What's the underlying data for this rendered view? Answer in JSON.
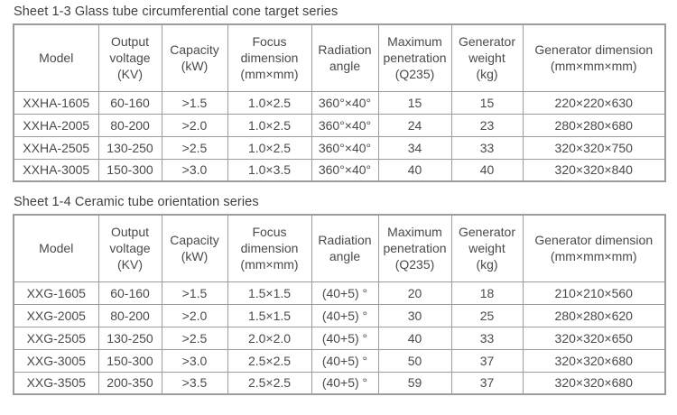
{
  "colors": {
    "border": "#9c9c9c",
    "text": "#4a4a4a",
    "title": "#404040"
  },
  "header_keys": [
    "model",
    "output-voltage",
    "capacity",
    "focus-dimension",
    "radiation-angle",
    "maximum-penetration",
    "generator-weight",
    "generator-dimension"
  ],
  "tables": [
    {
      "title": "Sheet 1-3 Glass tube circumferential cone target series",
      "headers": [
        "Model",
        "Output\nvoltage\n(KV)",
        "Capacity\n(kW)",
        "Focus\ndimension\n(mm×mm)",
        "Radiation\nangle",
        "Maximum\npenetration\n(Q235)",
        "Generator\nweight\n(kg)",
        "Generator dimension\n(mm×mm×mm)"
      ],
      "rows": [
        [
          "XXHA-1605",
          "60-160",
          ">1.5",
          "1.0×2.5",
          "360°×40°",
          "15",
          "15",
          "220×220×630"
        ],
        [
          "XXHA-2005",
          "80-200",
          ">2.0",
          "1.0×2.5",
          "360°×40°",
          "24",
          "23",
          "280×280×680"
        ],
        [
          "XXHA-2505",
          "130-250",
          ">2.5",
          "1.0×2.5",
          "360°×40°",
          "34",
          "33",
          "320×320×750"
        ],
        [
          "XXHA-3005",
          "150-300",
          ">3.0",
          "1.0×3.5",
          "360°×40°",
          "40",
          "40",
          "320×320×840"
        ]
      ]
    },
    {
      "title": "Sheet 1-4 Ceramic tube orientation series",
      "headers": [
        "Model",
        "Output\nvoltage\n(KV)",
        "Capacity\n(kW)",
        "Focus\ndimension\n(mm×mm)",
        "Radiation\nangle",
        "Maximum\npenetration\n(Q235)",
        "Generator\nweight\n(kg)",
        "Generator dimension\n(mm×mm×mm)"
      ],
      "rows": [
        [
          "XXG-1605",
          "60-160",
          ">1.5",
          "1.5×1.5",
          "(40+5) °",
          "20",
          "18",
          "210×210×560"
        ],
        [
          "XXG-2005",
          "80-200",
          ">2.0",
          "1.5×1.5",
          "(40+5) °",
          "30",
          "25",
          "280×280×620"
        ],
        [
          "XXG-2505",
          "130-250",
          ">2.5",
          "2.0×2.0",
          "(40+5) °",
          "40",
          "33",
          "320×320×650"
        ],
        [
          "XXG-3005",
          "150-300",
          ">3.0",
          "2.5×2.5",
          "(40+5) °",
          "50",
          "37",
          "320×320×680"
        ],
        [
          "XXG-3505",
          "200-350",
          ">3.5",
          "2.5×2.5",
          "(40+5) °",
          "59",
          "37",
          "320×320×680"
        ]
      ]
    }
  ]
}
